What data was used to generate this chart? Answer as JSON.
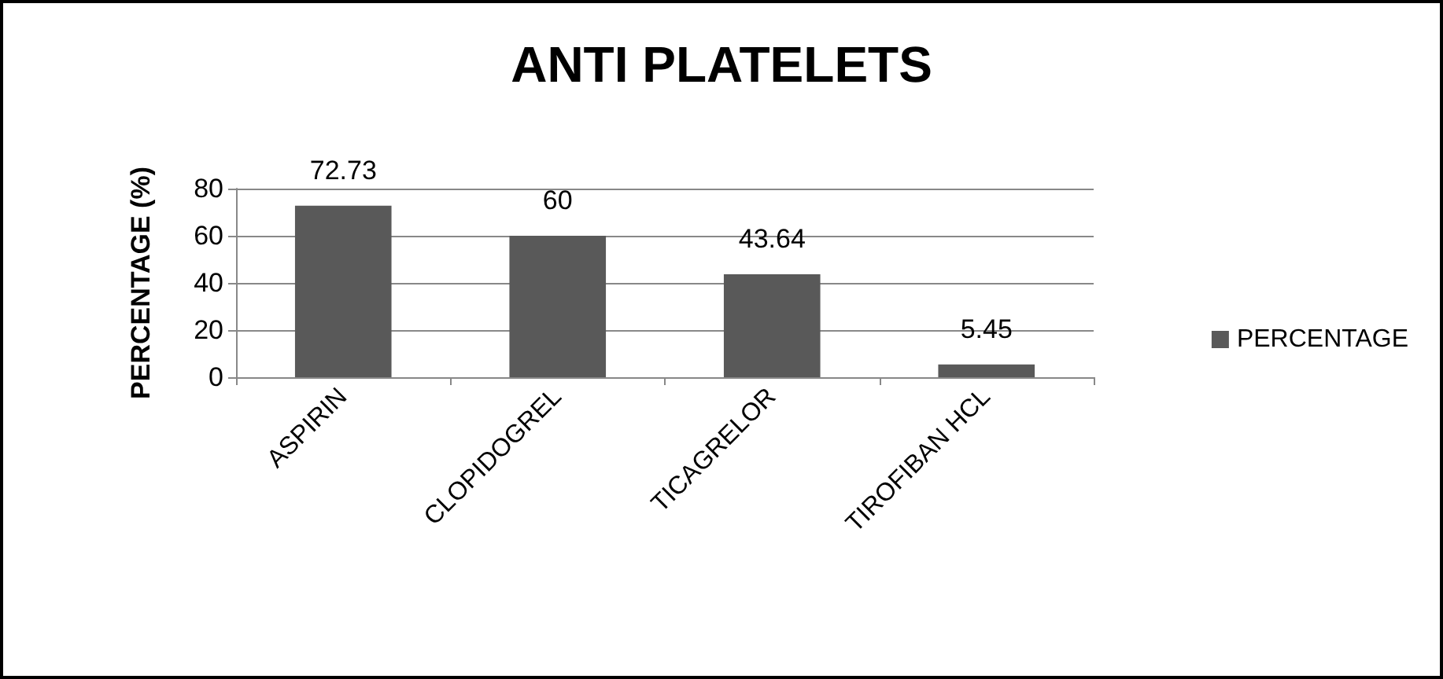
{
  "chart_data": {
    "type": "bar",
    "title": "ANTI PLATELETS",
    "ylabel": "PERCENTAGE (%)",
    "categories": [
      "ASPIRIN",
      "CLOPIDOGREL",
      "TICAGRELOR",
      "TIROFIBAN HCL"
    ],
    "series": [
      {
        "name": "PERCENTAGE",
        "color": "#595959",
        "values": [
          72.73,
          60,
          43.64,
          5.45
        ]
      }
    ],
    "ylim": [
      0,
      80
    ],
    "yticks": [
      0,
      20,
      40,
      60,
      80
    ],
    "grid": "y",
    "legend": "right",
    "data_labels": true
  }
}
